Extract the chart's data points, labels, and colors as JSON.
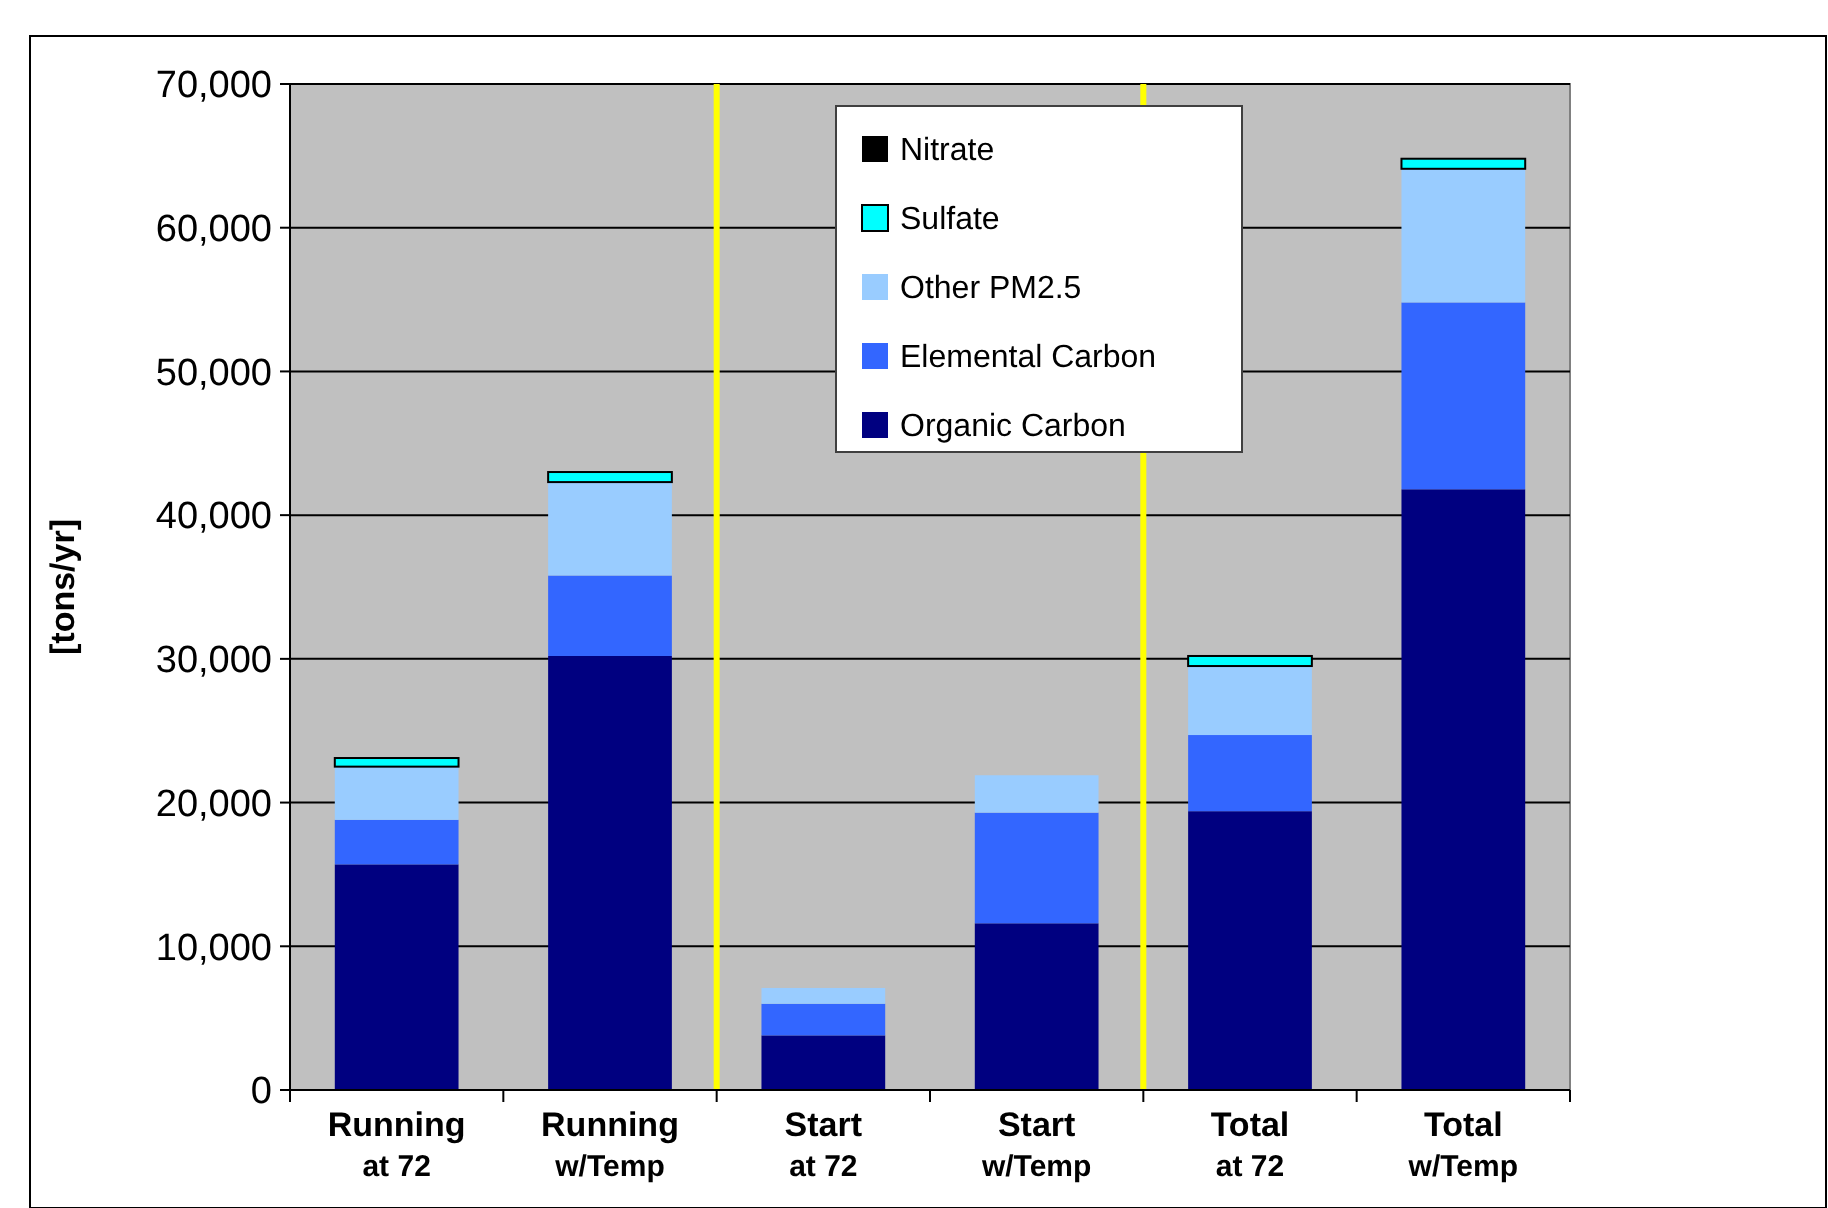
{
  "chart_data": {
    "type": "bar",
    "stacked": true,
    "ylabel": "[tons/yr]",
    "categories": [
      "Running\nat 72",
      "Running\nw/Temp",
      "Start\nat 72",
      "Start\nw/Temp",
      "Total\nat 72",
      "Total\nw/Temp"
    ],
    "series": [
      {
        "name": "Organic Carbon",
        "color": "#000080",
        "values": [
          15700,
          30200,
          3800,
          11600,
          19400,
          41800
        ]
      },
      {
        "name": "Elemental Carbon",
        "color": "#3366ff",
        "values": [
          3100,
          5600,
          2200,
          7700,
          5300,
          13000
        ]
      },
      {
        "name": "Other PM2.5",
        "color": "#99ccff",
        "values": [
          3700,
          6500,
          1100,
          2600,
          4800,
          9300
        ]
      },
      {
        "name": "Sulfate",
        "color": "#00ffff",
        "values": [
          600,
          700,
          0,
          0,
          700,
          700
        ]
      },
      {
        "name": "Nitrate",
        "color": "#000000",
        "values": [
          0,
          0,
          0,
          0,
          0,
          0
        ]
      }
    ],
    "ylim": [
      0,
      70000
    ],
    "yticks": [
      {
        "value": 0,
        "label": "0"
      },
      {
        "value": 10000,
        "label": "10,000"
      },
      {
        "value": 20000,
        "label": "20,000"
      },
      {
        "value": 30000,
        "label": "30,000"
      },
      {
        "value": 40000,
        "label": "40,000"
      },
      {
        "value": 50000,
        "label": "50,000"
      },
      {
        "value": 60000,
        "label": "60,000"
      },
      {
        "value": 70000,
        "label": "70,000"
      }
    ],
    "grid": "y",
    "legend": "top"
  }
}
